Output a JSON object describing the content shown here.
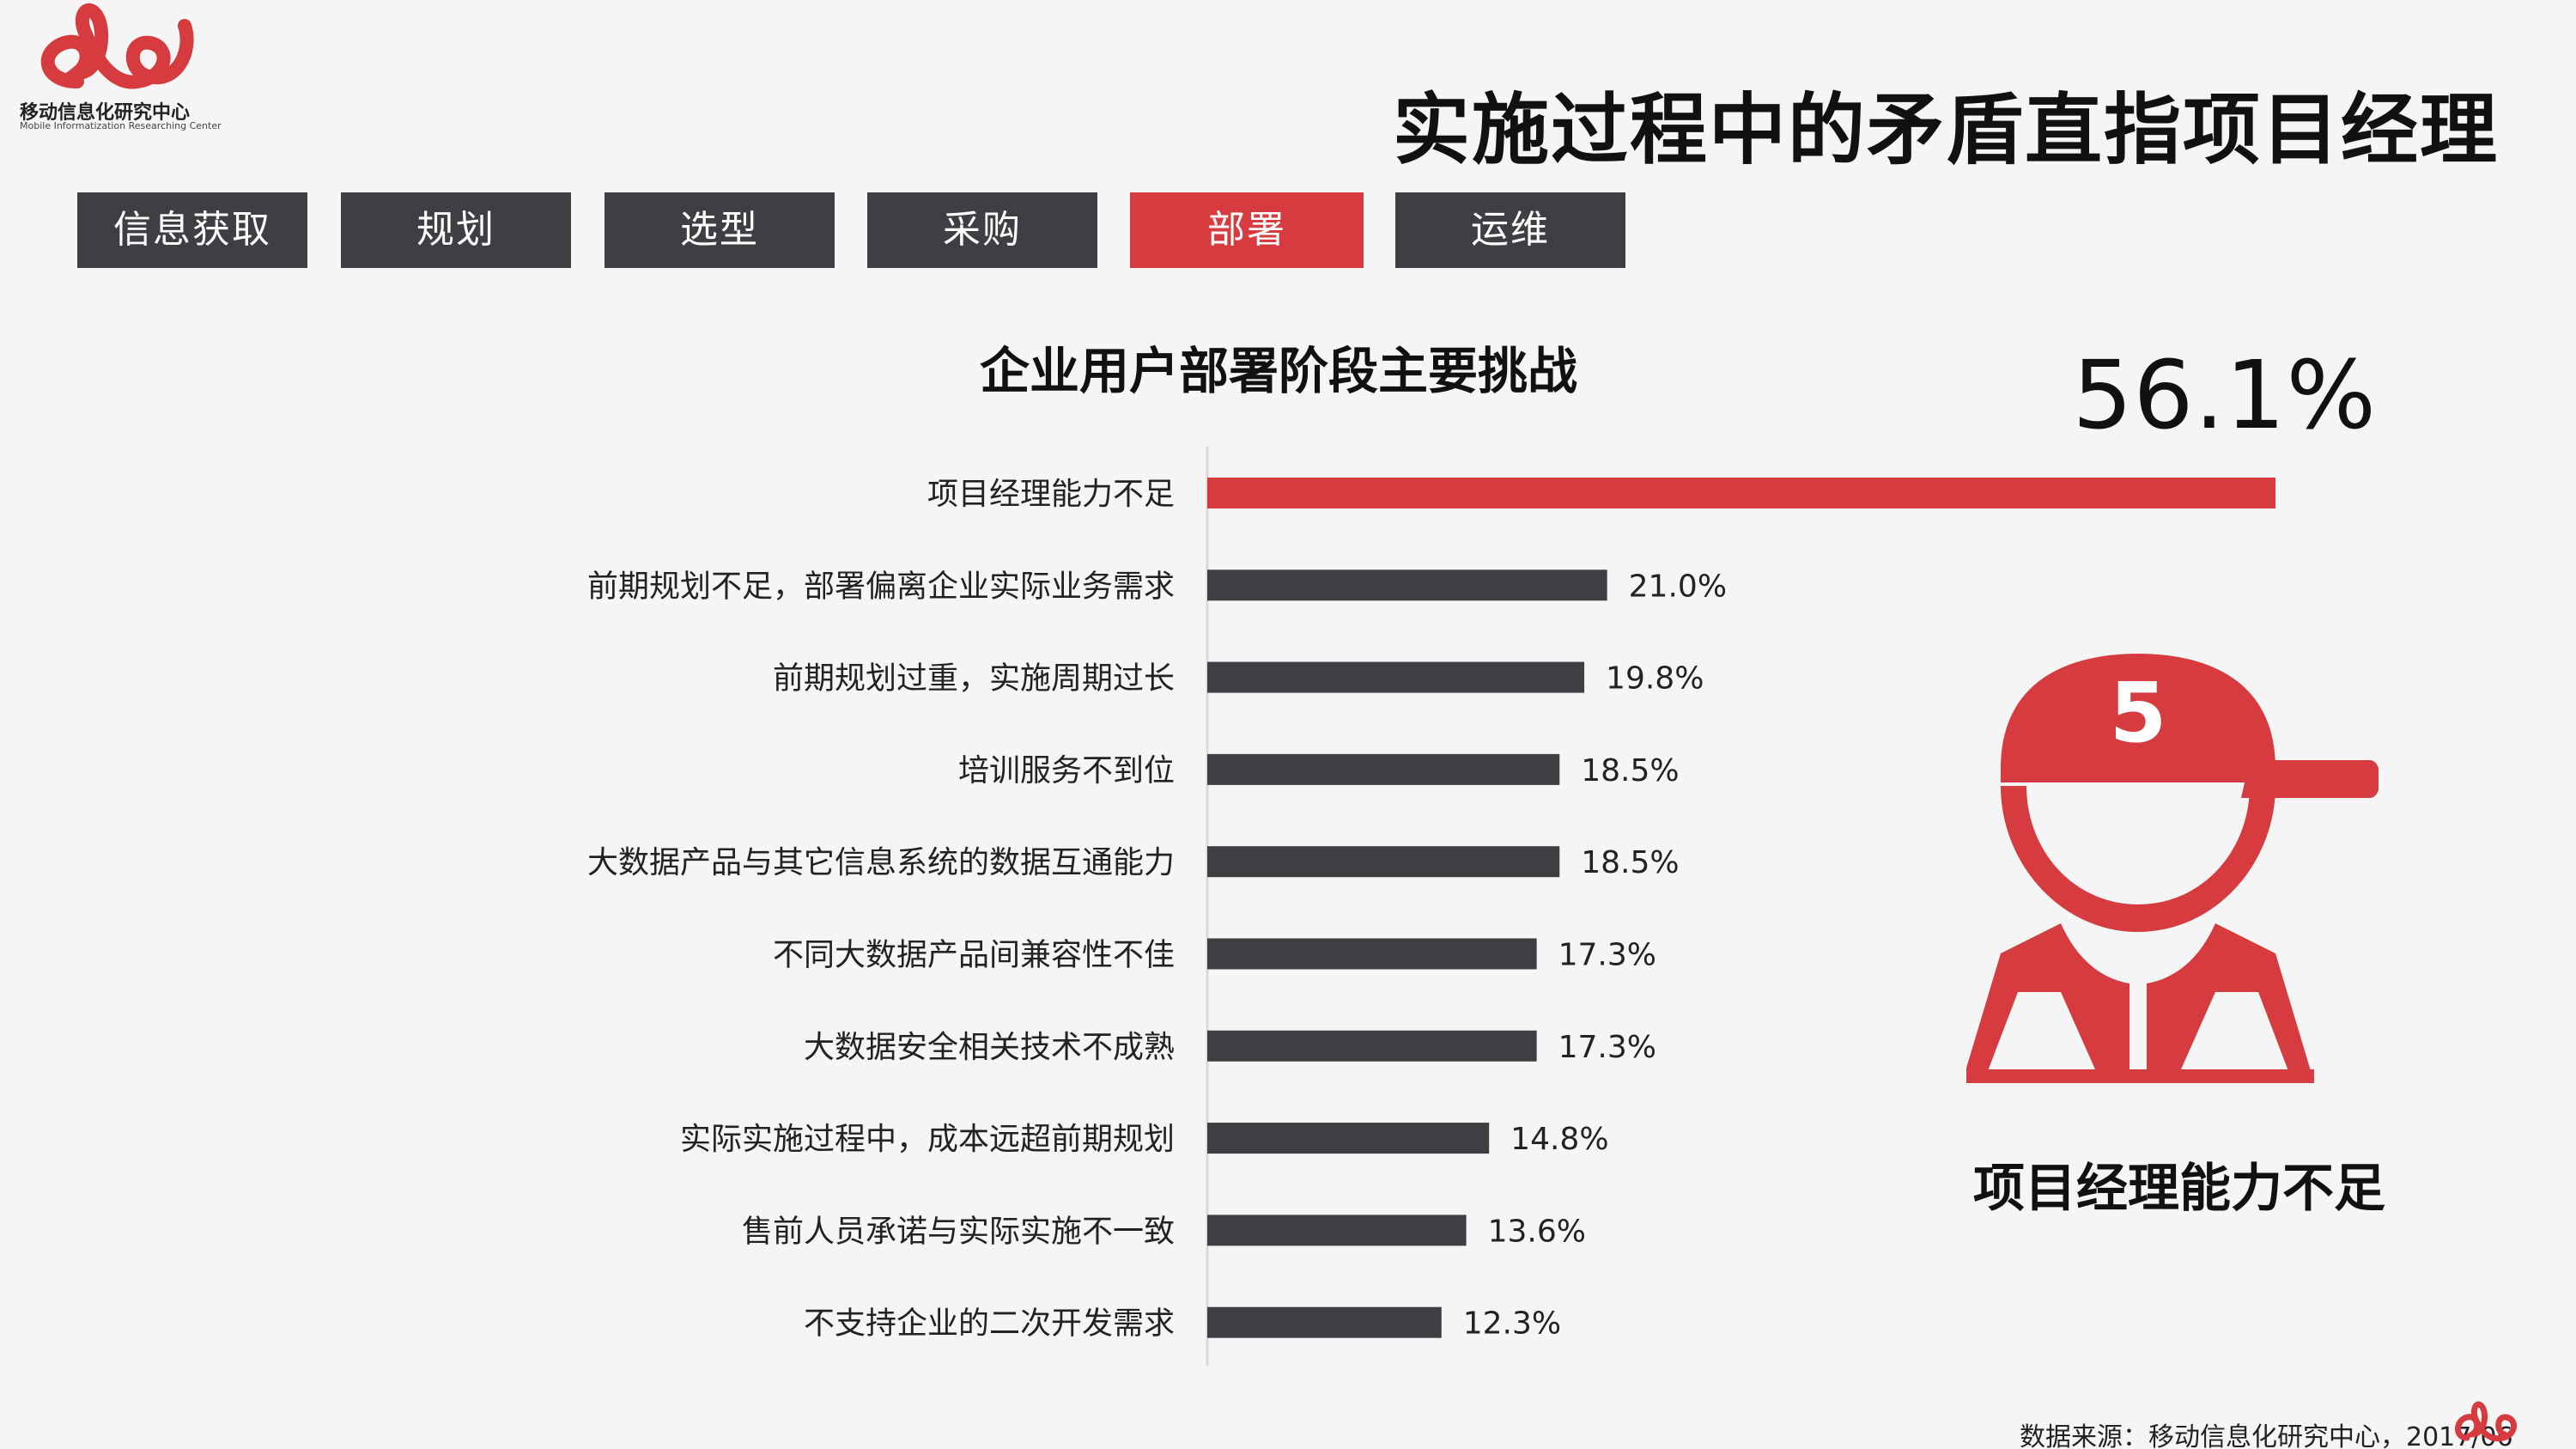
{
  "brand": {
    "name": "移动信息化研究中心",
    "subtitle": "Mobile Informatization Researching Center",
    "color": "#d63c3f"
  },
  "page_title": "实施过程中的矛盾直指项目经理",
  "tabs": [
    {
      "label": "信息获取",
      "active": false
    },
    {
      "label": "规划",
      "active": false
    },
    {
      "label": "选型",
      "active": false
    },
    {
      "label": "采购",
      "active": false
    },
    {
      "label": "部署",
      "active": true
    },
    {
      "label": "运维",
      "active": false
    }
  ],
  "highlight": {
    "value_label": "56.1%",
    "label": "项目经理能力不足",
    "badge_number": "5"
  },
  "source": "数据来源：移动信息化研究中心，2017/06",
  "colors": {
    "accent": "#d63c3f",
    "dark": "#3d3f43",
    "background": "#f5f5f5"
  },
  "chart_data": {
    "type": "bar",
    "orientation": "horizontal",
    "title": "企业用户部署阶段主要挑战",
    "xlim": [
      0,
      56.1
    ],
    "categories": [
      "项目经理能力不足",
      "前期规划不足，部署偏离企业实际业务需求",
      "前期规划过重，实施周期过长",
      "培训服务不到位",
      "大数据产品与其它信息系统的数据互通能力",
      "不同大数据产品间兼容性不佳",
      "大数据安全相关技术不成熟",
      "实际实施过程中，成本远超前期规划",
      "售前人员承诺与实际实施不一致",
      "不支持企业的二次开发需求"
    ],
    "values": [
      56.1,
      21.0,
      19.8,
      18.5,
      18.5,
      17.3,
      17.3,
      14.8,
      13.6,
      12.3
    ],
    "value_labels": [
      "",
      "21.0%",
      "19.8%",
      "18.5%",
      "18.5%",
      "17.3%",
      "17.3%",
      "14.8%",
      "13.6%",
      "12.3%"
    ],
    "highlight_index": 0,
    "bar_colors": [
      "#d63c3f",
      "#3d3f43",
      "#3d3f43",
      "#3d3f43",
      "#3d3f43",
      "#3d3f43",
      "#3d3f43",
      "#3d3f43",
      "#3d3f43",
      "#3d3f43"
    ]
  }
}
